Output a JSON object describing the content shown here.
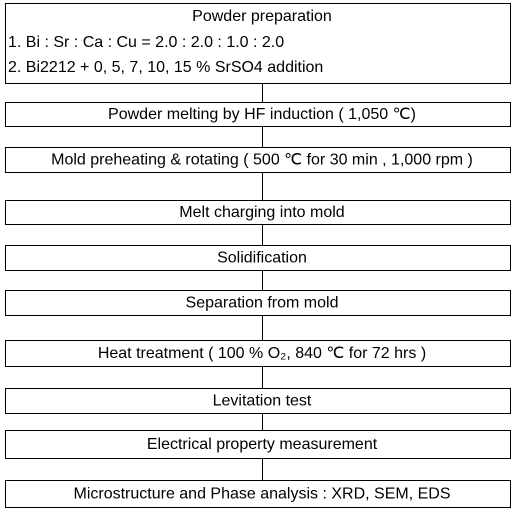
{
  "nodes": [
    {
      "title": "Powder preparation",
      "items": [
        "1.  Bi : Sr : Ca : Cu = 2.0 : 2.0 : 1.0 : 2.0",
        "2.  Bi2212 + 0, 5, 7, 10, 15 % SrSO4 addition"
      ]
    },
    {
      "label": "Powder melting by HF induction ( 1,050 ℃)"
    },
    {
      "label": "Mold preheating & rotating ( 500 ℃ for 30 min , 1,000 rpm )"
    },
    {
      "label": "Melt charging into mold"
    },
    {
      "label": "Solidification"
    },
    {
      "label": "Separation from mold"
    },
    {
      "label": "Heat treatment ( 100 % O₂, 840 ℃ for 72 hrs )"
    },
    {
      "label": "Levitation test"
    },
    {
      "label": "Electrical property measurement"
    },
    {
      "label": "Microstructure and Phase analysis : XRD, SEM, EDS"
    }
  ]
}
